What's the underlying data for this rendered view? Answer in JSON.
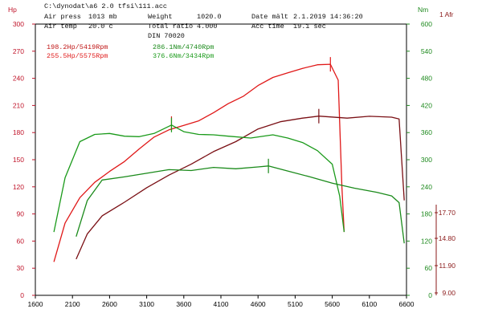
{
  "header": {
    "file_path": "C:\\dynodat\\a6 2.0 tfsi\\111.acc",
    "air_press_label": "Air press",
    "air_press_value": "1013 mb",
    "air_temp_label": "Air temp",
    "air_temp_value": "20.0 c",
    "weight_label": "Weight",
    "weight_value": "1020.0",
    "ratio_label": "Total ratio",
    "ratio_value": "4.000",
    "din_label": "DIN 70020",
    "date_label": "Date mält",
    "date_value": "2.1.2019 14:36:20",
    "acc_label": "Acc time",
    "acc_value": "19.1 sec"
  },
  "colors": {
    "frame": "#000000",
    "hp_axis": "#c0142a",
    "nm_axis": "#1f8a1f",
    "afr_axis": "#8b1a1a",
    "hp_red": "#e01818",
    "hp_darkred": "#7a0f14",
    "nm_green": "#1a9a1a",
    "nm_green2": "#1a8a1a"
  },
  "chart_data": {
    "type": "line",
    "xlabel": "",
    "x_ticks": [
      1600,
      2100,
      2600,
      3100,
      3600,
      4100,
      4600,
      5100,
      5600,
      6100,
      6600
    ],
    "xlim": [
      1600,
      6600
    ],
    "hp_axis": {
      "label": "Hp",
      "ylim": [
        0,
        300
      ],
      "ticks": [
        0,
        30,
        60,
        90,
        120,
        150,
        180,
        210,
        240,
        270,
        300
      ]
    },
    "nm_axis": {
      "label": "Nm",
      "ylim": [
        0,
        600
      ],
      "ticks": [
        0,
        60,
        120,
        180,
        240,
        300,
        360,
        420,
        480,
        540,
        600
      ]
    },
    "afr_axis": {
      "label": "1 Afr",
      "ticks": [
        "17.70",
        "14.80",
        "11.90",
        "9.00"
      ]
    },
    "annotations": [
      {
        "text": "198.2Hp/5419Rpm",
        "color": "#c01818"
      },
      {
        "text": "255.5Hp/5575Rpm",
        "color": "#e02020"
      },
      {
        "text": "286.1Nm/4740Rpm",
        "color": "#1a8a1a"
      },
      {
        "text": "376.6Nm/3434Rpm",
        "color": "#1a9a1a"
      }
    ],
    "series": [
      {
        "axis": "hp",
        "color": "#e01818",
        "x": [
          1850,
          2000,
          2200,
          2400,
          2600,
          2800,
          3000,
          3200,
          3400,
          3600,
          3800,
          4000,
          4200,
          4400,
          4600,
          4800,
          5000,
          5200,
          5400,
          5575,
          5680,
          5730,
          5760
        ],
        "y": [
          37,
          80,
          108,
          125,
          137,
          148,
          162,
          175,
          183,
          188,
          193,
          202,
          212,
          220,
          232,
          241,
          246,
          251,
          255,
          255.5,
          238,
          120,
          70
        ]
      },
      {
        "axis": "hp",
        "color": "#7a0f14",
        "x": [
          2150,
          2300,
          2500,
          2800,
          3100,
          3400,
          3700,
          4000,
          4300,
          4600,
          4900,
          5200,
          5419,
          5800,
          6100,
          6400,
          6500,
          6570
        ],
        "y": [
          40,
          68,
          88,
          103,
          119,
          133,
          145,
          159,
          170,
          184,
          192,
          196,
          198.2,
          196,
          198,
          197,
          195,
          105
        ]
      },
      {
        "axis": "nm",
        "color": "#1a9a1a",
        "x": [
          1850,
          2000,
          2200,
          2400,
          2600,
          2800,
          3000,
          3200,
          3434,
          3600,
          3800,
          4000,
          4200,
          4500,
          4800,
          5000,
          5200,
          5400,
          5600,
          5700,
          5760
        ],
        "y": [
          140,
          260,
          340,
          356,
          358,
          352,
          351,
          358,
          376.6,
          362,
          356,
          355,
          352,
          348,
          355,
          348,
          338,
          320,
          290,
          220,
          140
        ]
      },
      {
        "axis": "nm",
        "color": "#1a8a1a",
        "x": [
          2150,
          2300,
          2500,
          2800,
          3100,
          3400,
          3700,
          4000,
          4300,
          4600,
          4740,
          5000,
          5300,
          5600,
          5900,
          6200,
          6400,
          6500,
          6570
        ],
        "y": [
          130,
          210,
          255,
          262,
          270,
          278,
          276,
          283,
          280,
          284,
          286.1,
          275,
          262,
          248,
          237,
          228,
          220,
          205,
          115
        ]
      }
    ],
    "markers": [
      {
        "axis": "hp",
        "x": 3434,
        "y": 190,
        "color": "#e01818"
      },
      {
        "axis": "hp",
        "x": 5575,
        "y": 255.5,
        "color": "#e01818"
      },
      {
        "axis": "hp",
        "x": 5419,
        "y": 198.2,
        "color": "#7a0f14"
      },
      {
        "axis": "nm",
        "x": 3434,
        "y": 376.6,
        "color": "#1a9a1a"
      },
      {
        "axis": "nm",
        "x": 4740,
        "y": 286.1,
        "color": "#1a8a1a"
      }
    ]
  }
}
